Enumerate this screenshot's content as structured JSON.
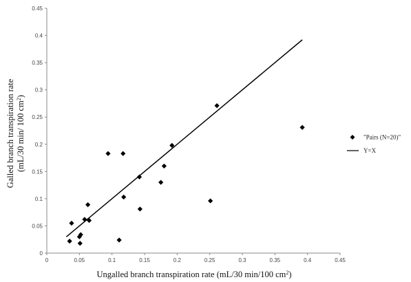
{
  "chart_data": {
    "type": "scatter",
    "xlabel_main": "Ungalled branch transpiration rate (mL/30 min/100 cm",
    "xlabel_sup": "2",
    "xlabel_end": ")",
    "ylabel_line1": "Galled branch transpiration rate",
    "ylabel_line2_main": "(mL/30 min/ 100 cm",
    "ylabel_line2_sup": "2",
    "ylabel_line2_end": ")",
    "xlim": [
      0,
      0.45
    ],
    "ylim": [
      0,
      0.45
    ],
    "x_ticks": [
      "0",
      "0.05",
      "0.1",
      "0.15",
      "0.2",
      "0.25",
      "0.3",
      "0.35",
      "0.4",
      "0.45"
    ],
    "y_ticks": [
      "0",
      "0.05",
      "0.1",
      "0.15",
      "0.2",
      "0.25",
      "0.3",
      "0.35",
      "0.4",
      "0.45"
    ],
    "grid": false,
    "legend_position": "right",
    "series": [
      {
        "name": "\"Pairs (N=20)\"",
        "kind": "scatter",
        "marker": "diamond",
        "color": "#000000",
        "points": [
          {
            "x": 0.035,
            "y": 0.022
          },
          {
            "x": 0.038,
            "y": 0.055
          },
          {
            "x": 0.05,
            "y": 0.03
          },
          {
            "x": 0.051,
            "y": 0.018
          },
          {
            "x": 0.052,
            "y": 0.034
          },
          {
            "x": 0.058,
            "y": 0.062
          },
          {
            "x": 0.063,
            "y": 0.089
          },
          {
            "x": 0.065,
            "y": 0.06
          },
          {
            "x": 0.094,
            "y": 0.183
          },
          {
            "x": 0.111,
            "y": 0.024
          },
          {
            "x": 0.117,
            "y": 0.183
          },
          {
            "x": 0.118,
            "y": 0.103
          },
          {
            "x": 0.142,
            "y": 0.14
          },
          {
            "x": 0.143,
            "y": 0.081
          },
          {
            "x": 0.175,
            "y": 0.13
          },
          {
            "x": 0.18,
            "y": 0.16
          },
          {
            "x": 0.192,
            "y": 0.198
          },
          {
            "x": 0.251,
            "y": 0.096
          },
          {
            "x": 0.261,
            "y": 0.271
          },
          {
            "x": 0.392,
            "y": 0.231
          }
        ]
      },
      {
        "name": "Y=X",
        "kind": "line",
        "color": "#000000",
        "x": [
          0.03,
          0.392
        ],
        "y": [
          0.03,
          0.392
        ]
      }
    ]
  }
}
